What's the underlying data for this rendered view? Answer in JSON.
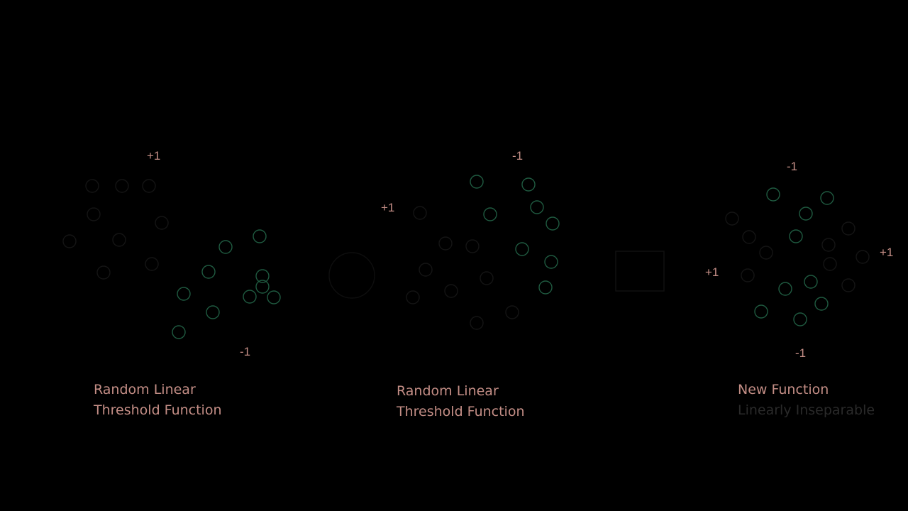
{
  "colors": {
    "background": "#000000",
    "label": "#c48e86",
    "point_visible": "#1f5a40",
    "point_faint": "#141414"
  },
  "panels": [
    {
      "id": "left",
      "labels": {
        "top": "+1",
        "bottom": "-1"
      },
      "caption": {
        "line1": "Random Linear",
        "line2": "Threshold Function"
      }
    },
    {
      "id": "middle",
      "labels": {
        "left": "+1",
        "top": "-1"
      },
      "caption": {
        "line1": "Random Linear",
        "line2": "Threshold Function"
      }
    },
    {
      "id": "right",
      "labels": {
        "top": "-1",
        "left": "+1",
        "right": "+1",
        "bottom": "-1"
      },
      "caption": {
        "line1": "New Function",
        "line2": "Linearly Inseparable"
      }
    }
  ],
  "operators": {
    "middle_symbol": "circle-operator",
    "right_symbol": "square-operator"
  }
}
